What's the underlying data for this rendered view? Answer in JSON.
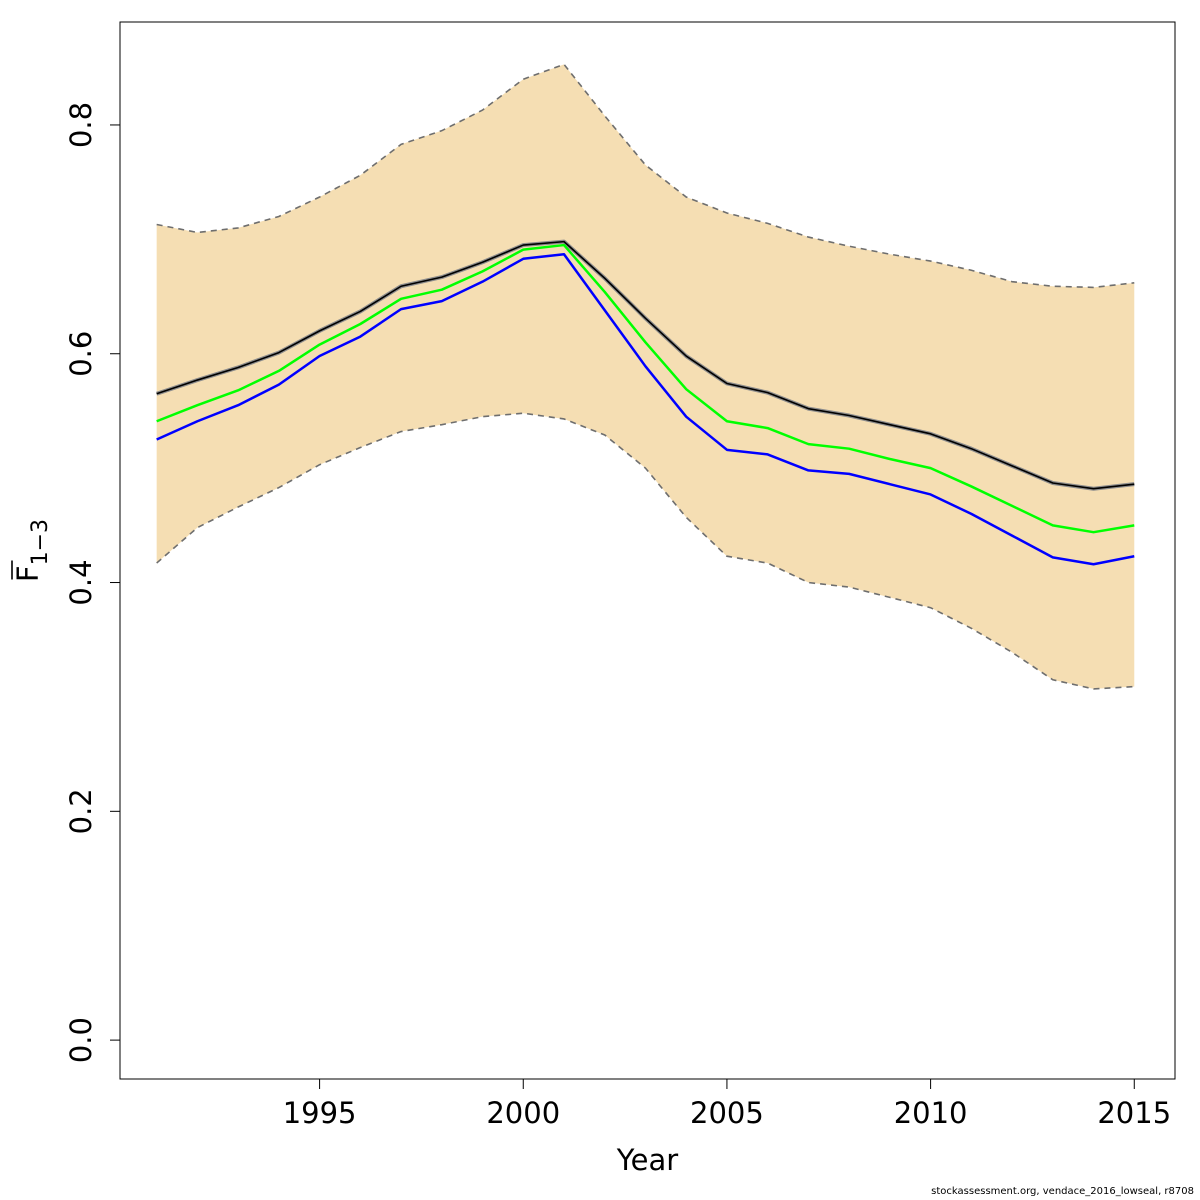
{
  "chart_data": {
    "type": "line",
    "xlabel": "Year",
    "ylabel": {
      "main": "F",
      "subscript": "1−3"
    },
    "xlim": [
      1990.1,
      2016.0
    ],
    "ylim": [
      -0.034,
      0.89
    ],
    "x_ticks": [
      1995,
      2000,
      2005,
      2010,
      2015
    ],
    "y_ticks": [
      0.0,
      0.2,
      0.4,
      0.6,
      0.8
    ],
    "x_tick_labels": [
      "1995",
      "2000",
      "2005",
      "2010",
      "2015"
    ],
    "y_tick_labels": [
      "0.0",
      "0.2",
      "0.4",
      "0.6",
      "0.8"
    ],
    "grid": false,
    "legend": "none",
    "x": [
      1991,
      1992,
      1993,
      1994,
      1995,
      1996,
      1997,
      1998,
      1999,
      2000,
      2001,
      2002,
      2003,
      2004,
      2005,
      2006,
      2007,
      2008,
      2009,
      2010,
      2011,
      2012,
      2013,
      2014,
      2015
    ],
    "band": {
      "color": "#f5deb3",
      "border_color": "#6e6e6e",
      "upper": [
        0.713,
        0.706,
        0.71,
        0.72,
        0.737,
        0.756,
        0.783,
        0.795,
        0.813,
        0.84,
        0.853,
        0.808,
        0.765,
        0.737,
        0.723,
        0.714,
        0.702,
        0.694,
        0.687,
        0.681,
        0.673,
        0.663,
        0.659,
        0.658,
        0.662
      ],
      "lower": [
        0.417,
        0.448,
        0.466,
        0.483,
        0.503,
        0.518,
        0.532,
        0.538,
        0.545,
        0.548,
        0.543,
        0.529,
        0.5,
        0.457,
        0.423,
        0.417,
        0.4,
        0.396,
        0.387,
        0.378,
        0.36,
        0.339,
        0.315,
        0.307,
        0.309
      ]
    },
    "series": [
      {
        "color": "#000000",
        "values": [
          0.565,
          0.577,
          0.588,
          0.601,
          0.62,
          0.637,
          0.659,
          0.667,
          0.68,
          0.695,
          0.698,
          0.666,
          0.631,
          0.598,
          0.574,
          0.566,
          0.552,
          0.546,
          0.538,
          0.53,
          0.517,
          0.502,
          0.487,
          0.482,
          0.486
        ]
      },
      {
        "color": "#00ff00",
        "values": [
          0.541,
          0.555,
          0.568,
          0.585,
          0.608,
          0.626,
          0.648,
          0.656,
          0.672,
          0.691,
          0.695,
          0.654,
          0.61,
          0.569,
          0.541,
          0.535,
          0.521,
          0.517,
          0.508,
          0.5,
          0.484,
          0.467,
          0.45,
          0.444,
          0.45
        ]
      },
      {
        "color": "#0000ff",
        "values": [
          0.525,
          0.541,
          0.555,
          0.573,
          0.598,
          0.615,
          0.639,
          0.646,
          0.663,
          0.683,
          0.687,
          0.638,
          0.589,
          0.545,
          0.516,
          0.512,
          0.498,
          0.495,
          0.486,
          0.477,
          0.46,
          0.441,
          0.422,
          0.416,
          0.423
        ]
      }
    ]
  },
  "footer": "stockassessment.org, vendace_2016_lowseal, r8708"
}
